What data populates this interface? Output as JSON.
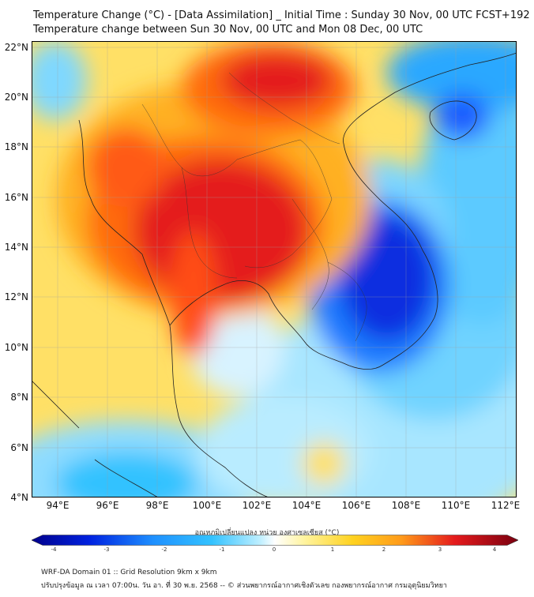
{
  "header": {
    "title_line1": "Temperature Change (°C) - [Data Assimilation] _ Initial Time : Sunday 30 Nov, 00 UTC FCST+192",
    "title_line2": "Temperature change between Sun 30 Nov, 00 UTC and Mon 08 Dec, 00 UTC"
  },
  "map": {
    "lat_labels": [
      "22°N",
      "20°N",
      "18°N",
      "16°N",
      "14°N",
      "12°N",
      "10°N",
      "8°N",
      "6°N",
      "4°N"
    ],
    "lon_labels": [
      "94°E",
      "96°E",
      "98°E",
      "100°E",
      "102°E",
      "104°E",
      "106°E",
      "108°E",
      "110°E",
      "112°E"
    ],
    "colors": {
      "ocean_bg": "#ffe066",
      "warm_strong": "#e41a1c",
      "warm": "#ff8c1a",
      "cool": "#33c2ff",
      "cold": "#0a2ee0"
    }
  },
  "colorbar": {
    "label": "อุณหภูมิเปลี่ยนแปลง หน่วย องศาเซลเซียส (°C)",
    "ticks": [
      "-4",
      "-3",
      "-2",
      "-1",
      "0",
      "1",
      "2",
      "3",
      "4"
    ],
    "min": -4,
    "max": 4
  },
  "footer": {
    "line1": "WRF-DA Domain 01 :: Grid Resolution 9km x 9km",
    "line2": "ปรับปรุงข้อมูล ณ เวลา 07:00น. วัน อา. ที่ 30 พ.ย. 2568 -- © ส่วนพยากรณ์อากาศเชิงตัวเลข กองพยากรณ์อากาศ กรมอุตุนิยมวิทยา"
  }
}
